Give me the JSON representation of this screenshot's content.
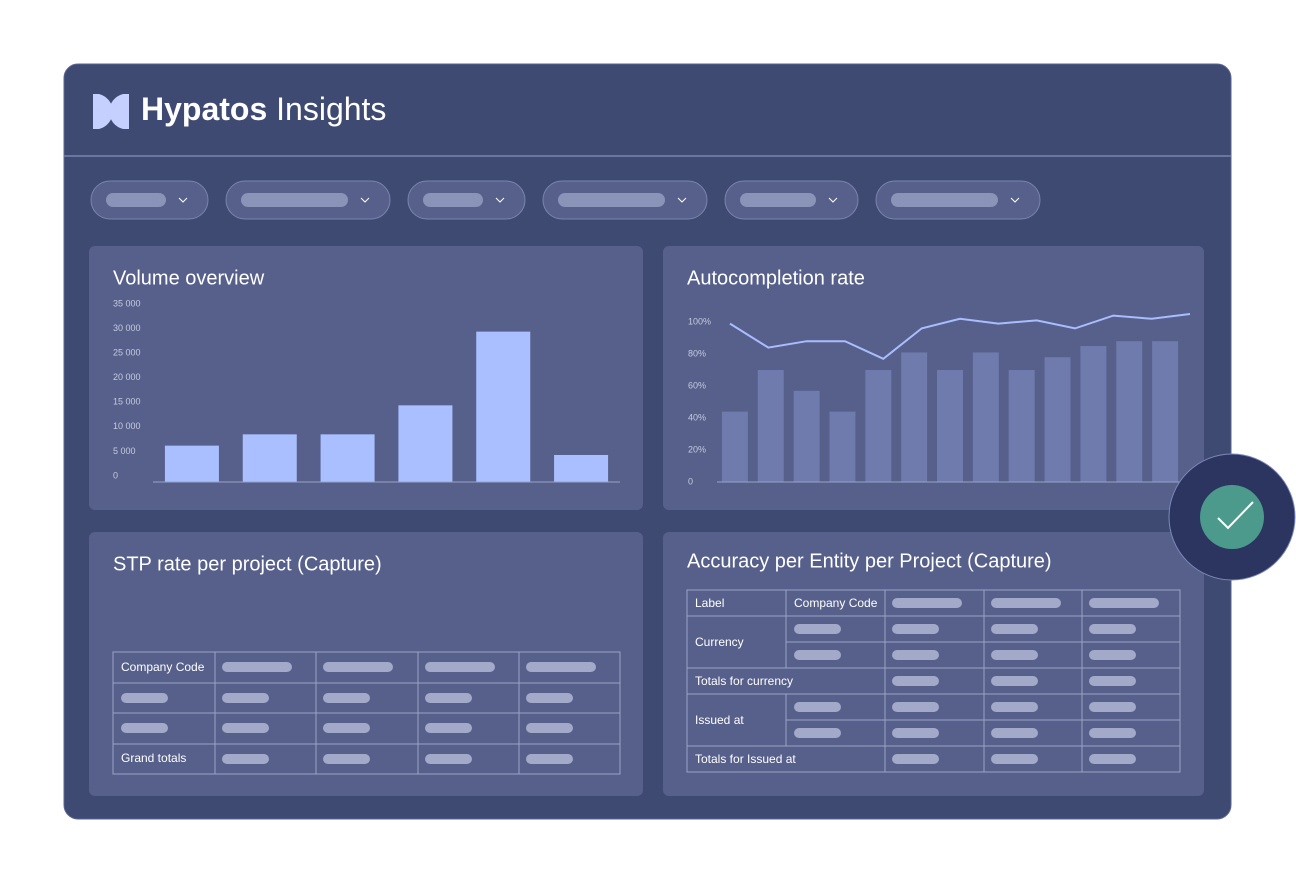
{
  "header": {
    "brand": "Hypatos",
    "product": "Insights"
  },
  "volume_chart": {
    "type": "bar",
    "title": "Volume overview",
    "color": "#aabfff",
    "values": [
      7400,
      9700,
      9700,
      15600,
      30600,
      5500
    ],
    "ylim": [
      0,
      35000
    ],
    "yticks": [
      0,
      {
        "value": 5000,
        "label": "5 000"
      },
      {
        "value": 10000,
        "label": "10 000"
      },
      {
        "value": 15000,
        "label": "15 000"
      },
      {
        "value": 20000,
        "label": "20 000"
      },
      {
        "value": 25000,
        "label": "25 000"
      },
      {
        "value": 30000,
        "label": "30 000"
      },
      {
        "value": 35000,
        "label": "35 000"
      }
    ]
  },
  "autocompletion_chart": {
    "type": "bar_line",
    "title": "Autocompletion rate",
    "series": [
      {
        "type": "bar",
        "color": "#6f7aad",
        "values": [
          44,
          70,
          57,
          44,
          70,
          81,
          70,
          81,
          70,
          78,
          85,
          88,
          88
        ]
      },
      {
        "type": "line",
        "color": "#a9bcff",
        "values": [
          99,
          84,
          88,
          88,
          77,
          96,
          102,
          99,
          101,
          96,
          104,
          102,
          105
        ]
      }
    ],
    "ylim": [
      0,
      110
    ],
    "yticks": [
      0,
      {
        "value": 20,
        "label": "20%"
      },
      {
        "value": 40,
        "label": "40%"
      },
      {
        "value": 60,
        "label": "60%"
      },
      {
        "value": 80,
        "label": "80%"
      },
      {
        "value": 100,
        "label": "100%"
      }
    ]
  },
  "stp_table": {
    "title": "STP rate per project (Capture)",
    "header_label": "Company Code",
    "total_label": "Grand totals"
  },
  "accuracy_table": {
    "title": "Accuracy per Entity per Project (Capture)",
    "header_labels": [
      "Label",
      "Company Code"
    ],
    "groups": [
      {
        "label": "Currency",
        "total": "Totals for currency"
      },
      {
        "label": "Issued at",
        "total": "Totals for Issued at"
      }
    ]
  }
}
